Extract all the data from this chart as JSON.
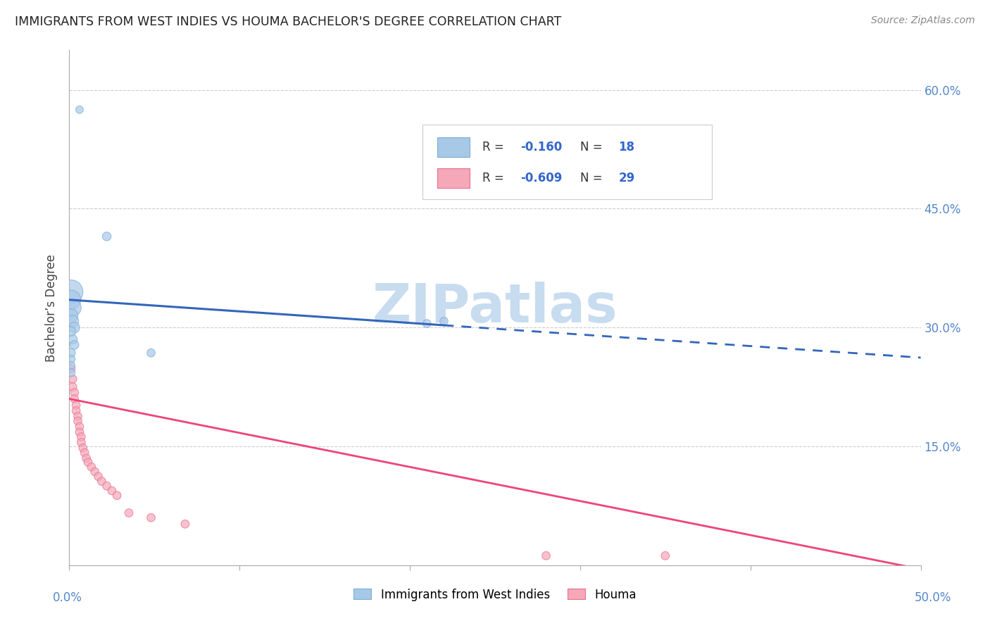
{
  "title": "IMMIGRANTS FROM WEST INDIES VS HOUMA BACHELOR'S DEGREE CORRELATION CHART",
  "source": "Source: ZipAtlas.com",
  "ylabel": "Bachelor’s Degree",
  "yticks": [
    0.0,
    0.15,
    0.3,
    0.45,
    0.6
  ],
  "ytick_labels": [
    "",
    "15.0%",
    "30.0%",
    "45.0%",
    "60.0%"
  ],
  "xmin": 0.0,
  "xmax": 0.5,
  "ymin": 0.0,
  "ymax": 0.65,
  "blue_R": -0.16,
  "blue_N": 18,
  "pink_R": -0.609,
  "pink_N": 29,
  "legend_label_blue": "Immigrants from West Indies",
  "legend_label_pink": "Houma",
  "blue_color": "#A8C8E8",
  "blue_edge_color": "#7BAFD4",
  "pink_color": "#F4A8B8",
  "pink_edge_color": "#E87090",
  "blue_line_color": "#3366BB",
  "pink_line_color": "#EE4477",
  "blue_scatter": [
    [
      0.006,
      0.575
    ],
    [
      0.022,
      0.415
    ],
    [
      0.001,
      0.345
    ],
    [
      0.001,
      0.335
    ],
    [
      0.002,
      0.325
    ],
    [
      0.001,
      0.315
    ],
    [
      0.002,
      0.308
    ],
    [
      0.003,
      0.3
    ],
    [
      0.001,
      0.295
    ],
    [
      0.002,
      0.285
    ],
    [
      0.003,
      0.278
    ],
    [
      0.001,
      0.268
    ],
    [
      0.001,
      0.26
    ],
    [
      0.001,
      0.252
    ],
    [
      0.001,
      0.243
    ],
    [
      0.048,
      0.268
    ],
    [
      0.21,
      0.305
    ],
    [
      0.22,
      0.308
    ]
  ],
  "blue_sizes": [
    60,
    80,
    600,
    400,
    300,
    200,
    150,
    120,
    100,
    90,
    80,
    80,
    70,
    70,
    70,
    70,
    70,
    70
  ],
  "pink_scatter": [
    [
      0.001,
      0.248
    ],
    [
      0.002,
      0.235
    ],
    [
      0.002,
      0.225
    ],
    [
      0.003,
      0.218
    ],
    [
      0.003,
      0.21
    ],
    [
      0.004,
      0.202
    ],
    [
      0.004,
      0.195
    ],
    [
      0.005,
      0.188
    ],
    [
      0.005,
      0.182
    ],
    [
      0.006,
      0.175
    ],
    [
      0.006,
      0.168
    ],
    [
      0.007,
      0.162
    ],
    [
      0.007,
      0.155
    ],
    [
      0.008,
      0.148
    ],
    [
      0.009,
      0.142
    ],
    [
      0.01,
      0.135
    ],
    [
      0.011,
      0.13
    ],
    [
      0.013,
      0.124
    ],
    [
      0.015,
      0.118
    ],
    [
      0.017,
      0.112
    ],
    [
      0.019,
      0.106
    ],
    [
      0.022,
      0.1
    ],
    [
      0.025,
      0.094
    ],
    [
      0.028,
      0.088
    ],
    [
      0.035,
      0.066
    ],
    [
      0.048,
      0.06
    ],
    [
      0.068,
      0.052
    ],
    [
      0.28,
      0.012
    ],
    [
      0.35,
      0.012
    ]
  ],
  "pink_sizes": [
    70,
    70,
    70,
    70,
    70,
    70,
    70,
    70,
    70,
    70,
    70,
    70,
    70,
    70,
    70,
    70,
    70,
    70,
    70,
    70,
    70,
    70,
    70,
    70,
    70,
    70,
    70,
    70,
    70
  ],
  "blue_line_x0": 0.0,
  "blue_line_y0": 0.335,
  "blue_line_x_solid_end": 0.22,
  "blue_line_x1": 0.5,
  "blue_line_y1": 0.262,
  "pink_line_x0": 0.0,
  "pink_line_y0": 0.21,
  "pink_line_x1": 0.5,
  "pink_line_y1": -0.005,
  "background_color": "#FFFFFF",
  "watermark": "ZIPatlas",
  "watermark_color": "#C8DCF0",
  "grid_color": "#CCCCCC"
}
